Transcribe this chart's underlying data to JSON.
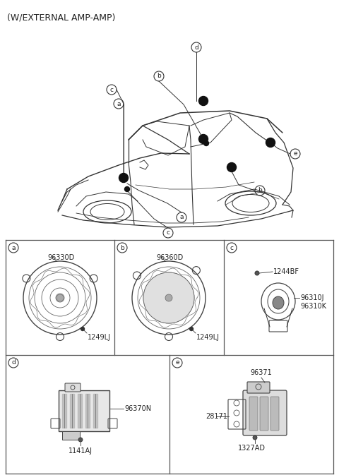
{
  "title": "(W/EXTERNAL AMP-AMP)",
  "title_fontsize": 9,
  "bg_color": "#ffffff",
  "line_color": "#333333",
  "text_color": "#222222",
  "grid_line_color": "#555555",
  "part_numbers": {
    "a_main": "96330D",
    "a_sub": "1249LJ",
    "b_main": "96360D",
    "b_sub": "1249LJ",
    "c_main": "1244BF",
    "c_sub1": "96310J",
    "c_sub2": "96310K",
    "d_main": "96370N",
    "d_sub": "1141AJ",
    "e_main": "96371",
    "e_sub1": "28171",
    "e_sub2": "1327AD"
  },
  "fig_width": 4.8,
  "fig_height": 6.73,
  "dpi": 100
}
